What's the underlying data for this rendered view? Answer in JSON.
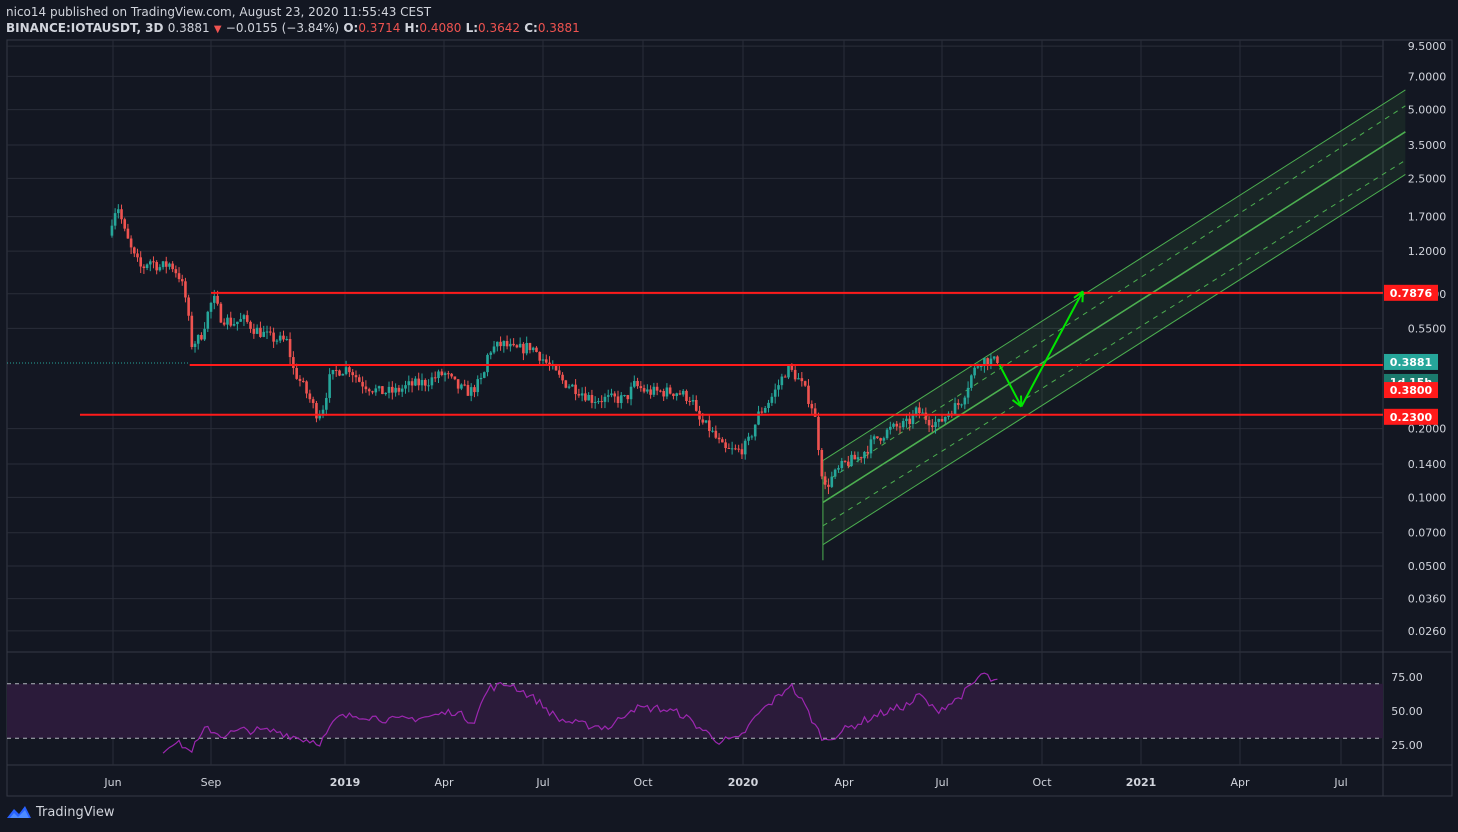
{
  "header": {
    "publisher_line": "nico14 published on TradingView.com, August 23, 2020 11:55:43 CEST",
    "symbol": "BINANCE:IOTAUSDT, 3D",
    "last": "0.3881",
    "change": "−0.0155 (−3.84%)",
    "ohlc": [
      {
        "k": "O:",
        "v": "0.3714"
      },
      {
        "k": "H:",
        "v": "0.4080"
      },
      {
        "k": "L:",
        "v": "0.3642"
      },
      {
        "k": "C:",
        "v": "0.3881"
      }
    ]
  },
  "footer": {
    "brand": "TradingView"
  },
  "colors": {
    "bg": "#131722",
    "grid": "#2a2e39",
    "axis_text": "#d1d4dc",
    "up": "#26a69a",
    "down": "#ef5350",
    "hline": "#ff1a1a",
    "channel": "#4caf50",
    "arrow": "#00e600",
    "rsi_line": "#9c27b0",
    "rsi_band": "#2b1b3a"
  },
  "chart_data": {
    "type": "candlestick",
    "scale": "log",
    "ylim": [
      0.021,
      10.1
    ],
    "price_ticks": [
      "9.5000",
      "7.0000",
      "5.0000",
      "3.5000",
      "2.5000",
      "1.7000",
      "1.2000",
      "0.7800",
      "0.5500",
      "0.2000",
      "0.1400",
      "0.1000",
      "0.0700",
      "0.0500",
      "0.0360",
      "0.0260"
    ],
    "x_ticks": [
      {
        "label": "Jun",
        "date": "2018-06-01",
        "bold": false
      },
      {
        "label": "Sep",
        "date": "2018-09-01",
        "bold": false
      },
      {
        "label": "2019",
        "date": "2019-01-01",
        "bold": true
      },
      {
        "label": "Apr",
        "date": "2019-04-01",
        "bold": false
      },
      {
        "label": "Jul",
        "date": "2019-07-01",
        "bold": false
      },
      {
        "label": "Oct",
        "date": "2019-10-01",
        "bold": false
      },
      {
        "label": "2020",
        "date": "2020-01-01",
        "bold": true
      },
      {
        "label": "Apr",
        "date": "2020-04-01",
        "bold": false
      },
      {
        "label": "Jul",
        "date": "2020-07-01",
        "bold": false
      },
      {
        "label": "Oct",
        "date": "2020-10-01",
        "bold": false
      },
      {
        "label": "2021",
        "date": "2021-01-01",
        "bold": true
      },
      {
        "label": "Apr",
        "date": "2021-04-01",
        "bold": false
      },
      {
        "label": "Jul",
        "date": "2021-07-01",
        "bold": false
      }
    ],
    "price_path": [
      [
        "2018-05-31",
        1.65
      ],
      [
        "2018-06-05",
        1.95
      ],
      [
        "2018-06-12",
        1.45
      ],
      [
        "2018-06-20",
        1.15
      ],
      [
        "2018-06-28",
        1.0
      ],
      [
        "2018-07-05",
        1.1
      ],
      [
        "2018-07-15",
        1.02
      ],
      [
        "2018-07-25",
        1.06
      ],
      [
        "2018-08-03",
        0.92
      ],
      [
        "2018-08-08",
        0.75
      ],
      [
        "2018-08-14",
        0.47
      ],
      [
        "2018-08-22",
        0.5
      ],
      [
        "2018-08-28",
        0.62
      ],
      [
        "2018-09-03",
        0.75
      ],
      [
        "2018-09-10",
        0.62
      ],
      [
        "2018-09-20",
        0.58
      ],
      [
        "2018-10-01",
        0.6
      ],
      [
        "2018-10-10",
        0.55
      ],
      [
        "2018-10-25",
        0.5
      ],
      [
        "2018-11-10",
        0.48
      ],
      [
        "2018-11-14",
        0.37
      ],
      [
        "2018-11-25",
        0.3
      ],
      [
        "2018-12-07",
        0.23
      ],
      [
        "2018-12-12",
        0.25
      ],
      [
        "2018-12-18",
        0.33
      ],
      [
        "2018-12-25",
        0.36
      ],
      [
        "2019-01-05",
        0.37
      ],
      [
        "2019-01-15",
        0.32
      ],
      [
        "2019-02-01",
        0.29
      ],
      [
        "2019-02-15",
        0.29
      ],
      [
        "2019-03-01",
        0.31
      ],
      [
        "2019-03-15",
        0.32
      ],
      [
        "2019-04-01",
        0.35
      ],
      [
        "2019-04-15",
        0.3
      ],
      [
        "2019-04-25",
        0.29
      ],
      [
        "2019-05-07",
        0.33
      ],
      [
        "2019-05-12",
        0.44
      ],
      [
        "2019-05-25",
        0.47
      ],
      [
        "2019-06-05",
        0.44
      ],
      [
        "2019-06-20",
        0.46
      ],
      [
        "2019-06-28",
        0.42
      ],
      [
        "2019-07-10",
        0.36
      ],
      [
        "2019-07-20",
        0.32
      ],
      [
        "2019-08-01",
        0.3
      ],
      [
        "2019-08-15",
        0.27
      ],
      [
        "2019-09-01",
        0.27
      ],
      [
        "2019-09-15",
        0.27
      ],
      [
        "2019-09-23",
        0.31
      ],
      [
        "2019-10-05",
        0.29
      ],
      [
        "2019-10-20",
        0.29
      ],
      [
        "2019-11-01",
        0.29
      ],
      [
        "2019-11-15",
        0.27
      ],
      [
        "2019-11-20",
        0.22
      ],
      [
        "2019-12-01",
        0.2
      ],
      [
        "2019-12-15",
        0.16
      ],
      [
        "2019-12-28",
        0.16
      ],
      [
        "2020-01-05",
        0.17
      ],
      [
        "2020-01-15",
        0.23
      ],
      [
        "2020-01-28",
        0.28
      ],
      [
        "2020-02-10",
        0.37
      ],
      [
        "2020-02-18",
        0.34
      ],
      [
        "2020-02-25",
        0.3
      ],
      [
        "2020-03-05",
        0.24
      ],
      [
        "2020-03-12",
        0.13
      ],
      [
        "2020-03-15",
        0.11
      ],
      [
        "2020-03-20",
        0.12
      ],
      [
        "2020-04-01",
        0.14
      ],
      [
        "2020-04-15",
        0.15
      ],
      [
        "2020-04-30",
        0.18
      ],
      [
        "2020-05-15",
        0.2
      ],
      [
        "2020-05-30",
        0.21
      ],
      [
        "2020-06-08",
        0.24
      ],
      [
        "2020-06-18",
        0.22
      ],
      [
        "2020-06-28",
        0.21
      ],
      [
        "2020-07-08",
        0.24
      ],
      [
        "2020-07-18",
        0.26
      ],
      [
        "2020-07-28",
        0.34
      ],
      [
        "2020-08-05",
        0.4
      ],
      [
        "2020-08-12",
        0.4
      ],
      [
        "2020-08-23",
        0.3881
      ]
    ],
    "horizontal_levels": [
      {
        "price": 0.7876,
        "label": "0.7876",
        "from": "2018-09-01"
      },
      {
        "price": 0.38,
        "label": "0.3800",
        "from": "2018-08-12"
      },
      {
        "price": 0.23,
        "label": "0.2300",
        "from": "2018-05-01"
      }
    ],
    "last_price": {
      "price": 0.3881,
      "label": "0.3881",
      "countdown": "1d 15h"
    },
    "channel": {
      "start": "2020-03-13",
      "end": "2021-08-28",
      "mid_start": 0.095,
      "mid_end": 4.0,
      "dash_start": [
        0.075,
        0.115
      ],
      "dash_end": [
        3.0,
        5.2
      ],
      "outer_start": [
        0.062,
        0.145
      ],
      "outer_end": [
        2.6,
        6.1
      ],
      "anchor_low": 0.053
    },
    "arrows": [
      {
        "from": [
          "2020-08-23",
          0.38
        ],
        "to": [
          "2020-09-12",
          0.25
        ]
      },
      {
        "from": [
          "2020-09-12",
          0.25
        ],
        "to": [
          "2020-11-08",
          0.8
        ]
      }
    ],
    "rsi": {
      "ticks": [
        "75.00",
        "50.00",
        "25.00"
      ],
      "overbought": 70,
      "oversold": 30,
      "path": [
        [
          "2018-07-18",
          20
        ],
        [
          "2018-07-25",
          27
        ],
        [
          "2018-08-05",
          25
        ],
        [
          "2018-08-12",
          20
        ],
        [
          "2018-08-20",
          28
        ],
        [
          "2018-08-28",
          38
        ],
        [
          "2018-09-10",
          32
        ],
        [
          "2018-10-01",
          36
        ],
        [
          "2018-11-01",
          35
        ],
        [
          "2018-11-20",
          30
        ],
        [
          "2018-12-10",
          27
        ],
        [
          "2018-12-25",
          45
        ],
        [
          "2019-01-15",
          47
        ],
        [
          "2019-02-15",
          43
        ],
        [
          "2019-03-20",
          46
        ],
        [
          "2019-04-10",
          50
        ],
        [
          "2019-04-28",
          42
        ],
        [
          "2019-05-12",
          67
        ],
        [
          "2019-06-01",
          70
        ],
        [
          "2019-06-25",
          58
        ],
        [
          "2019-07-15",
          44
        ],
        [
          "2019-08-05",
          40
        ],
        [
          "2019-09-01",
          38
        ],
        [
          "2019-09-20",
          52
        ],
        [
          "2019-10-15",
          52
        ],
        [
          "2019-11-05",
          48
        ],
        [
          "2019-11-25",
          36
        ],
        [
          "2019-12-10",
          28
        ],
        [
          "2019-12-28",
          29
        ],
        [
          "2020-01-15",
          48
        ],
        [
          "2020-02-05",
          63
        ],
        [
          "2020-02-12",
          70
        ],
        [
          "2020-02-25",
          55
        ],
        [
          "2020-03-08",
          36
        ],
        [
          "2020-03-15",
          28
        ],
        [
          "2020-04-01",
          36
        ],
        [
          "2020-05-01",
          47
        ],
        [
          "2020-06-01",
          55
        ],
        [
          "2020-06-10",
          62
        ],
        [
          "2020-06-25",
          50
        ],
        [
          "2020-07-12",
          57
        ],
        [
          "2020-07-28",
          68
        ],
        [
          "2020-08-07",
          78
        ],
        [
          "2020-08-15",
          73
        ],
        [
          "2020-08-23",
          70
        ]
      ]
    }
  }
}
